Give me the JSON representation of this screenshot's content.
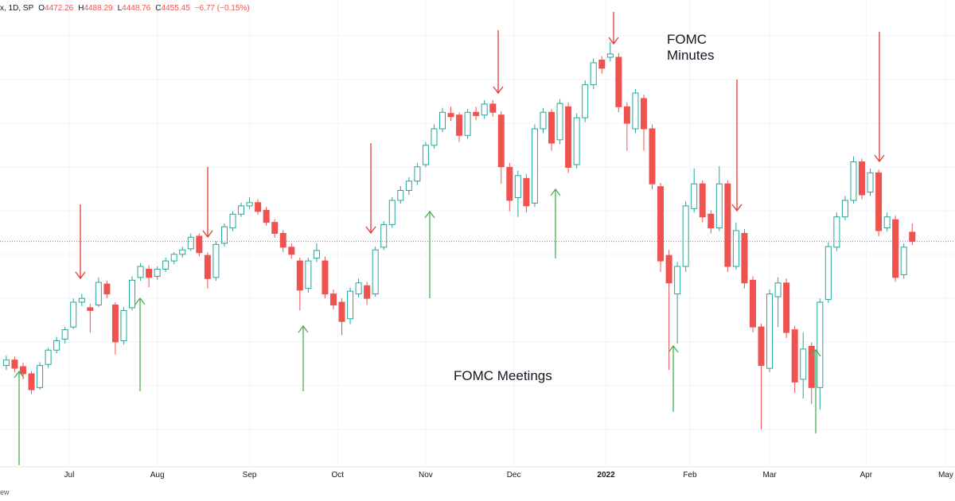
{
  "header": {
    "symbol": "x, 1D, SP",
    "o": "O",
    "h": "H",
    "l": "L",
    "c": "C",
    "change": "−6.77 (−0.15%)"
  },
  "annotations": {
    "minutes": "FOMC\nMinutes",
    "meetings": "FOMC Meetings"
  },
  "footer": "ew",
  "chart_data": {
    "type": "candlestick",
    "up_color": "#26a69a",
    "down_color": "#ef5350",
    "last_price_line": true,
    "xlim": [
      -16.5,
      211.2
    ],
    "ylim": [
      4046,
      4894
    ],
    "xticks": [
      {
        "value": 0,
        "label": "Jul"
      },
      {
        "value": 21,
        "label": "Aug"
      },
      {
        "value": 43,
        "label": "Sep"
      },
      {
        "value": 64,
        "label": "Oct"
      },
      {
        "value": 85,
        "label": "Nov"
      },
      {
        "value": 106,
        "label": "Dec"
      },
      128,
      {
        "value": 148,
        "label": "Feb"
      },
      {
        "value": 167,
        "label": "Mar"
      },
      {
        "value": 190,
        "label": "Apr"
      },
      {
        "value": 209,
        "label": "May"
      }
    ],
    "xtick_label_2022": "2022",
    "candles": [
      [
        -15,
        4230,
        4248,
        4222,
        4240
      ],
      [
        -13,
        4240,
        4246,
        4218,
        4225
      ],
      [
        -11,
        4228,
        4235,
        4205,
        4215
      ],
      [
        -9,
        4215,
        4220,
        4178,
        4186
      ],
      [
        -7,
        4190,
        4236,
        4186,
        4230
      ],
      [
        -5,
        4232,
        4262,
        4226,
        4258
      ],
      [
        -3,
        4258,
        4282,
        4252,
        4275
      ],
      [
        -1,
        4278,
        4300,
        4270,
        4295
      ],
      [
        1,
        4300,
        4352,
        4296,
        4345
      ],
      [
        3,
        4345,
        4360,
        4338,
        4352
      ],
      [
        5,
        4335,
        4342,
        4290,
        4330
      ],
      [
        7,
        4340,
        4390,
        4336,
        4381
      ],
      [
        9,
        4378,
        4384,
        4352,
        4360
      ],
      [
        11,
        4340,
        4345,
        4250,
        4273
      ],
      [
        13,
        4275,
        4336,
        4268,
        4330
      ],
      [
        15,
        4335,
        4392,
        4330,
        4385
      ],
      [
        17,
        4390,
        4416,
        4384,
        4410
      ],
      [
        19,
        4405,
        4412,
        4372,
        4390
      ],
      [
        21,
        4392,
        4410,
        4386,
        4405
      ],
      [
        23,
        4405,
        4426,
        4400,
        4420
      ],
      [
        25,
        4420,
        4436,
        4414,
        4432
      ],
      [
        27,
        4432,
        4446,
        4426,
        4440
      ],
      [
        29,
        4442,
        4470,
        4438,
        4463
      ],
      [
        31,
        4465,
        4470,
        4428,
        4435
      ],
      [
        33,
        4430,
        4436,
        4370,
        4388
      ],
      [
        35,
        4390,
        4456,
        4384,
        4450
      ],
      [
        37,
        4452,
        4488,
        4446,
        4482
      ],
      [
        39,
        4480,
        4510,
        4474,
        4505
      ],
      [
        41,
        4505,
        4526,
        4500,
        4520
      ],
      [
        43,
        4520,
        4536,
        4514,
        4526
      ],
      [
        45,
        4526,
        4532,
        4504,
        4510
      ],
      [
        47,
        4512,
        4518,
        4484,
        4490
      ],
      [
        49,
        4490,
        4496,
        4462,
        4470
      ],
      [
        51,
        4470,
        4476,
        4436,
        4445
      ],
      [
        53,
        4445,
        4452,
        4424,
        4432
      ],
      [
        55,
        4420,
        4426,
        4330,
        4367
      ],
      [
        57,
        4370,
        4426,
        4362,
        4420
      ],
      [
        59,
        4425,
        4452,
        4418,
        4439
      ],
      [
        61,
        4420,
        4428,
        4352,
        4360
      ],
      [
        63,
        4360,
        4368,
        4332,
        4340
      ],
      [
        65,
        4345,
        4352,
        4285,
        4310
      ],
      [
        67,
        4315,
        4372,
        4305,
        4365
      ],
      [
        69,
        4360,
        4388,
        4354,
        4380
      ],
      [
        71,
        4375,
        4382,
        4340,
        4352
      ],
      [
        73,
        4360,
        4446,
        4355,
        4440
      ],
      [
        75,
        4445,
        4492,
        4440,
        4486
      ],
      [
        77,
        4486,
        4536,
        4480,
        4530
      ],
      [
        79,
        4530,
        4556,
        4524,
        4548
      ],
      [
        81,
        4548,
        4572,
        4540,
        4565
      ],
      [
        83,
        4565,
        4598,
        4558,
        4591
      ],
      [
        85,
        4595,
        4636,
        4590,
        4630
      ],
      [
        87,
        4630,
        4668,
        4624,
        4660
      ],
      [
        89,
        4660,
        4698,
        4654,
        4690
      ],
      [
        91,
        4688,
        4700,
        4674,
        4682
      ],
      [
        93,
        4685,
        4690,
        4636,
        4648
      ],
      [
        95,
        4648,
        4696,
        4642,
        4690
      ],
      [
        97,
        4690,
        4700,
        4676,
        4684
      ],
      [
        99,
        4685,
        4712,
        4678,
        4705
      ],
      [
        101,
        4705,
        4712,
        4682,
        4690
      ],
      [
        103,
        4685,
        4692,
        4560,
        4591
      ],
      [
        105,
        4590,
        4598,
        4510,
        4530
      ],
      [
        107,
        4535,
        4584,
        4500,
        4575
      ],
      [
        109,
        4570,
        4578,
        4508,
        4520
      ],
      [
        111,
        4525,
        4668,
        4518,
        4660
      ],
      [
        113,
        4660,
        4698,
        4652,
        4690
      ],
      [
        115,
        4690,
        4696,
        4620,
        4634
      ],
      [
        117,
        4640,
        4714,
        4632,
        4706
      ],
      [
        119,
        4700,
        4708,
        4580,
        4590
      ],
      [
        121,
        4595,
        4688,
        4588,
        4680
      ],
      [
        123,
        4680,
        4748,
        4672,
        4740
      ],
      [
        125,
        4740,
        4788,
        4732,
        4780
      ],
      [
        127,
        4785,
        4792,
        4760,
        4770
      ],
      [
        129,
        4790,
        4818,
        4782,
        4796
      ],
      [
        131,
        4790,
        4798,
        4690,
        4700
      ],
      [
        133,
        4700,
        4708,
        4620,
        4670
      ],
      [
        135,
        4660,
        4732,
        4652,
        4725
      ],
      [
        137,
        4715,
        4722,
        4620,
        4660
      ],
      [
        139,
        4660,
        4668,
        4550,
        4560
      ],
      [
        141,
        4555,
        4562,
        4400,
        4420
      ],
      [
        143,
        4430,
        4440,
        4222,
        4380
      ],
      [
        145,
        4360,
        4418,
        4270,
        4410
      ],
      [
        147,
        4410,
        4528,
        4400,
        4520
      ],
      [
        149,
        4515,
        4588,
        4508,
        4560
      ],
      [
        151,
        4560,
        4566,
        4490,
        4500
      ],
      [
        153,
        4505,
        4512,
        4470,
        4480
      ],
      [
        155,
        4480,
        4592,
        4474,
        4560
      ],
      [
        157,
        4560,
        4566,
        4400,
        4410
      ],
      [
        159,
        4410,
        4490,
        4404,
        4475
      ],
      [
        161,
        4470,
        4478,
        4370,
        4380
      ],
      [
        163,
        4385,
        4392,
        4290,
        4300
      ],
      [
        165,
        4300,
        4306,
        4114,
        4230
      ],
      [
        167,
        4225,
        4368,
        4218,
        4360
      ],
      [
        169,
        4355,
        4390,
        4300,
        4380
      ],
      [
        171,
        4380,
        4388,
        4280,
        4290
      ],
      [
        173,
        4295,
        4302,
        4180,
        4200
      ],
      [
        175,
        4205,
        4290,
        4170,
        4260
      ],
      [
        177,
        4265,
        4272,
        4160,
        4190
      ],
      [
        179,
        4190,
        4352,
        4150,
        4345
      ],
      [
        181,
        4350,
        4454,
        4344,
        4446
      ],
      [
        183,
        4445,
        4508,
        4438,
        4500
      ],
      [
        185,
        4500,
        4538,
        4494,
        4530
      ],
      [
        187,
        4530,
        4610,
        4524,
        4600
      ],
      [
        189,
        4600,
        4606,
        4532,
        4540
      ],
      [
        191,
        4545,
        4588,
        4538,
        4580
      ],
      [
        193,
        4580,
        4586,
        4465,
        4475
      ],
      [
        195,
        4480,
        4508,
        4474,
        4500
      ],
      [
        197,
        4495,
        4502,
        4382,
        4390
      ],
      [
        199,
        4395,
        4452,
        4388,
        4445
      ],
      [
        201,
        4472.26,
        4488.29,
        4448.76,
        4455.45
      ]
    ]
  }
}
